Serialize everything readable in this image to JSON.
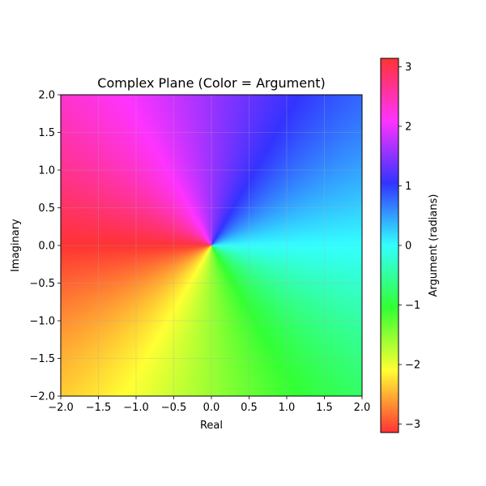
{
  "chart_data": {
    "type": "heatmap",
    "title": "Complex Plane (Color = Argument)",
    "xlabel": "Real",
    "ylabel": "Imaginary",
    "xlim": [
      -2.0,
      2.0
    ],
    "ylim": [
      -2.0,
      2.0
    ],
    "xticks": [
      -2.0,
      -1.5,
      -1.0,
      -0.5,
      0.0,
      0.5,
      1.0,
      1.5,
      2.0
    ],
    "yticks": [
      -2.0,
      -1.5,
      -1.0,
      -0.5,
      0.0,
      0.5,
      1.0,
      1.5,
      2.0
    ],
    "xtick_labels": [
      "−2.0",
      "−1.5",
      "−1.0",
      "−0.5",
      "0.0",
      "0.5",
      "1.0",
      "1.5",
      "2.0"
    ],
    "ytick_labels": [
      "−2.0",
      "−1.5",
      "−1.0",
      "−0.5",
      "0.0",
      "0.5",
      "1.0",
      "1.5",
      "2.0"
    ],
    "grid": true,
    "value": "arg(z)",
    "colormap": "hsv",
    "colorbar": {
      "label": "Argument (radians)",
      "range": [
        -3.14159,
        3.14159
      ],
      "ticks": [
        -3,
        -2,
        -1,
        0,
        1,
        2,
        3
      ],
      "tick_labels": [
        "−3",
        "−2",
        "−1",
        "0",
        "1",
        "2",
        "3"
      ]
    }
  }
}
